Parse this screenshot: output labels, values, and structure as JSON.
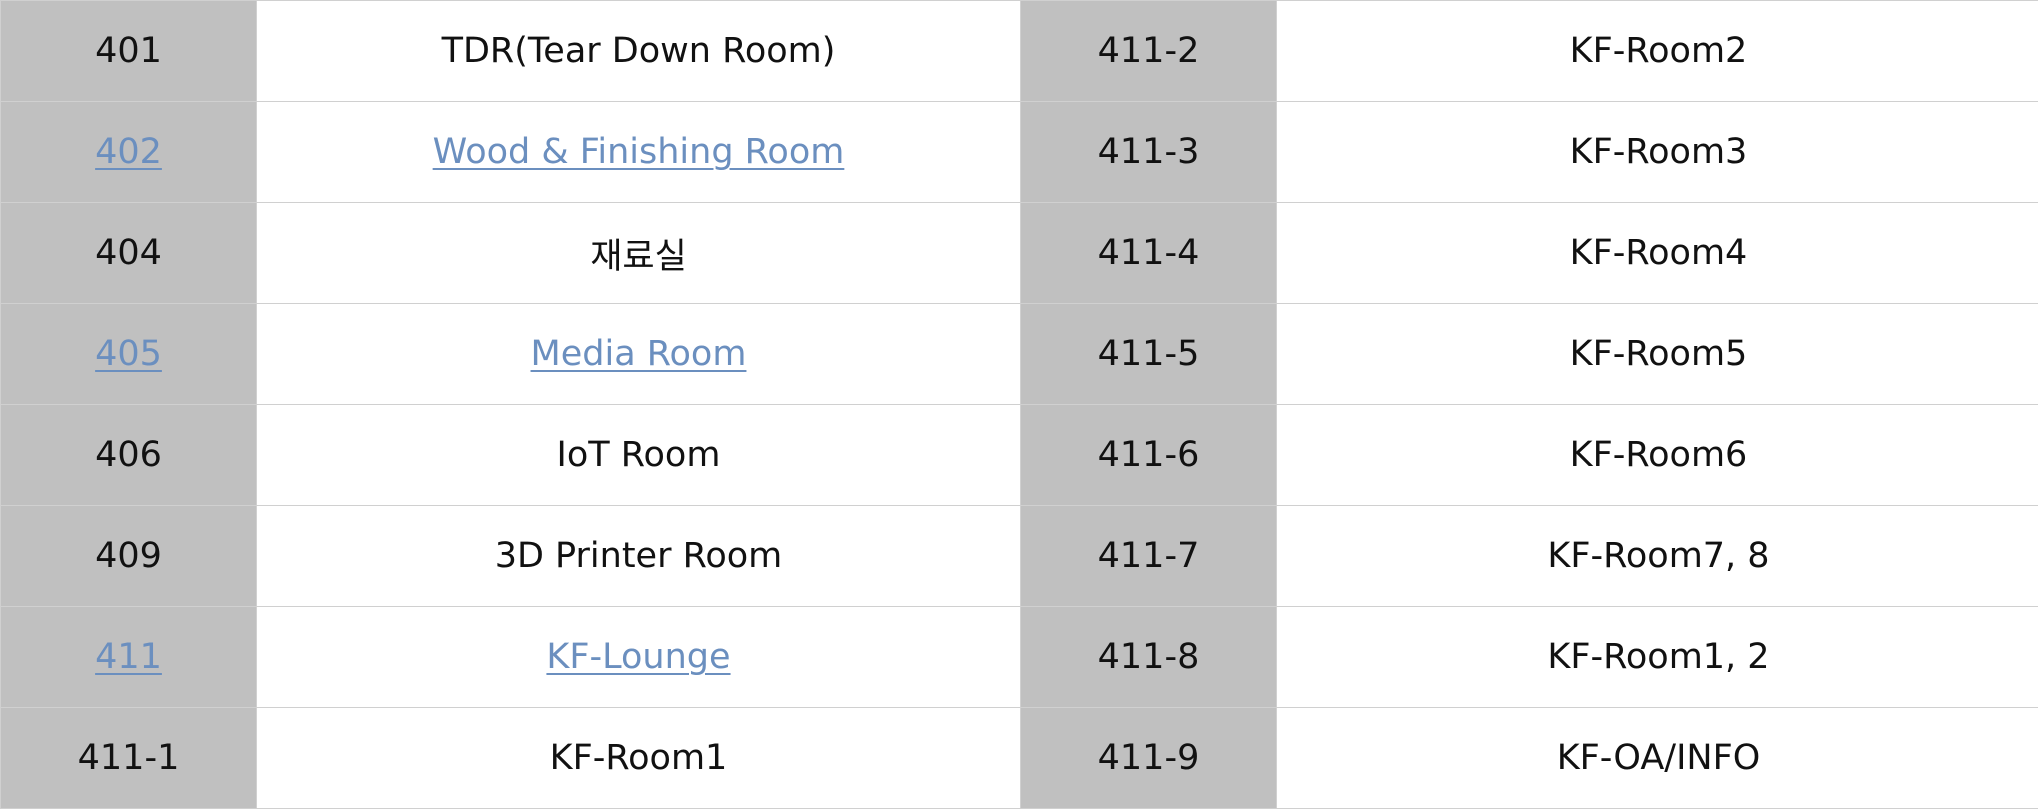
{
  "colors": {
    "number_cell_bg": "#c0c0c0",
    "name_cell_bg": "#ffffff",
    "link": "#6b8fbf",
    "text": "#111111",
    "border": "#d0d0d0"
  },
  "rows": [
    {
      "left": {
        "number": "401",
        "name": "TDR(Tear Down Room)",
        "link": false
      },
      "right": {
        "number": "411-2",
        "name": "KF-Room2"
      }
    },
    {
      "left": {
        "number": "402",
        "name": "Wood & Finishing Room",
        "link": true
      },
      "right": {
        "number": "411-3",
        "name": "KF-Room3"
      }
    },
    {
      "left": {
        "number": "404",
        "name": "재료실",
        "link": false
      },
      "right": {
        "number": "411-4",
        "name": "KF-Room4"
      }
    },
    {
      "left": {
        "number": "405",
        "name": "Media Room",
        "link": true
      },
      "right": {
        "number": "411-5",
        "name": "KF-Room5"
      }
    },
    {
      "left": {
        "number": "406",
        "name": "IoT Room",
        "link": false
      },
      "right": {
        "number": "411-6",
        "name": "KF-Room6"
      }
    },
    {
      "left": {
        "number": "409",
        "name": "3D Printer Room",
        "link": false
      },
      "right": {
        "number": "411-7",
        "name": "KF-Room7, 8"
      }
    },
    {
      "left": {
        "number": "411",
        "name": "KF-Lounge",
        "link": true
      },
      "right": {
        "number": "411-8",
        "name": "KF-Room1, 2"
      }
    },
    {
      "left": {
        "number": "411-1",
        "name": "KF-Room1",
        "link": false
      },
      "right": {
        "number": "411-9",
        "name": "KF-OA/INFO"
      }
    }
  ]
}
